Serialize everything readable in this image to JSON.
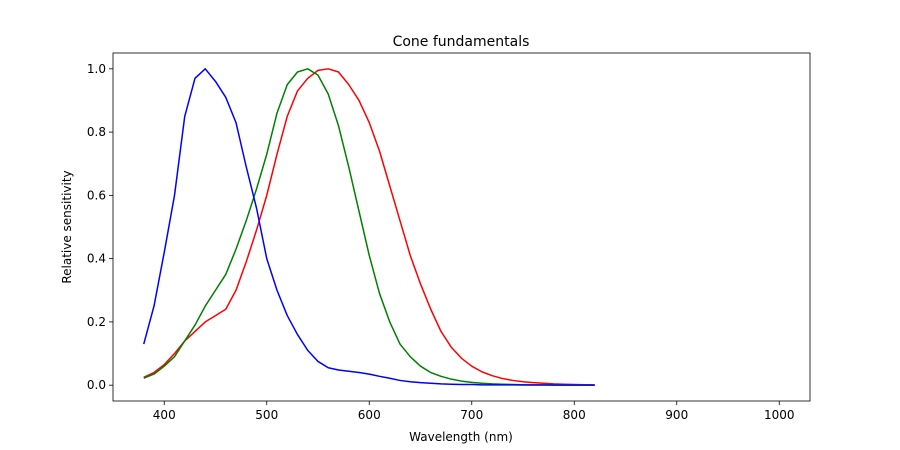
{
  "chart_data": {
    "type": "line",
    "title": "Cone fundamentals",
    "xlabel": "Wavelength (nm)",
    "ylabel": "Relative sensitivity",
    "x": [
      380,
      390,
      400,
      410,
      420,
      430,
      440,
      450,
      460,
      470,
      480,
      490,
      500,
      510,
      520,
      530,
      540,
      550,
      560,
      570,
      580,
      590,
      600,
      610,
      620,
      630,
      640,
      650,
      660,
      670,
      680,
      690,
      700,
      710,
      720,
      730,
      740,
      750,
      760,
      770,
      780,
      790,
      800,
      810,
      820
    ],
    "series": [
      {
        "color": "#ff0000",
        "values": [
          0.025,
          0.04,
          0.065,
          0.1,
          0.14,
          0.17,
          0.2,
          0.22,
          0.24,
          0.3,
          0.39,
          0.49,
          0.6,
          0.73,
          0.85,
          0.93,
          0.97,
          0.995,
          1.0,
          0.99,
          0.95,
          0.9,
          0.83,
          0.74,
          0.63,
          0.52,
          0.41,
          0.32,
          0.24,
          0.17,
          0.12,
          0.085,
          0.06,
          0.042,
          0.03,
          0.021,
          0.015,
          0.011,
          0.008,
          0.006,
          0.004,
          0.003,
          0.002,
          0.0015,
          0.001
        ]
      },
      {
        "color": "#008000",
        "values": [
          0.022,
          0.035,
          0.06,
          0.09,
          0.14,
          0.19,
          0.25,
          0.3,
          0.35,
          0.43,
          0.52,
          0.62,
          0.73,
          0.86,
          0.95,
          0.99,
          1.0,
          0.98,
          0.92,
          0.82,
          0.69,
          0.55,
          0.41,
          0.29,
          0.2,
          0.13,
          0.09,
          0.06,
          0.04,
          0.028,
          0.019,
          0.013,
          0.009,
          0.006,
          0.004,
          0.003,
          0.002,
          0.0015,
          0.001,
          0.001,
          0.0008,
          0.0006,
          0.0005,
          0.0004,
          0.0003
        ]
      },
      {
        "color": "#0000ff",
        "values": [
          0.13,
          0.25,
          0.42,
          0.6,
          0.85,
          0.97,
          1.0,
          0.96,
          0.91,
          0.83,
          0.69,
          0.56,
          0.4,
          0.3,
          0.22,
          0.16,
          0.11,
          0.075,
          0.055,
          0.048,
          0.044,
          0.04,
          0.035,
          0.028,
          0.022,
          0.015,
          0.011,
          0.008,
          0.006,
          0.004,
          0.003,
          0.002,
          0.002,
          0.001,
          0.001,
          0.001,
          0.001,
          0.0005,
          0.0005,
          0.0005,
          0.0003,
          0.0003,
          0.0002,
          0.0002,
          0.0001
        ]
      }
    ],
    "xlim": [
      350,
      1030
    ],
    "xticks": [
      400,
      500,
      600,
      700,
      800,
      900,
      1000
    ],
    "ylim": [
      -0.05,
      1.05
    ],
    "yticks": [
      {
        "value": 0,
        "label": "0.0"
      },
      0.2,
      0.4,
      0.6,
      0.8,
      {
        "value": 1,
        "label": "1.0"
      }
    ]
  }
}
